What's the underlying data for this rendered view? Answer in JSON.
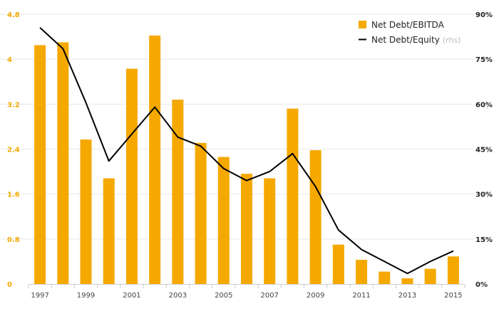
{
  "chart_data": {
    "type": "bar+line",
    "x": [
      "1997",
      "1998",
      "1999",
      "2000",
      "2001",
      "2002",
      "2003",
      "2004",
      "2005",
      "2006",
      "2007",
      "2008",
      "2009",
      "2010",
      "2011",
      "2012",
      "2013",
      "2014",
      "2015"
    ],
    "x_tick_labels": [
      "1997",
      "1999",
      "2001",
      "2003",
      "2005",
      "2007",
      "2009",
      "2011",
      "2013",
      "2015"
    ],
    "series": [
      {
        "name": "Net Debt/EBITDA",
        "type": "bar",
        "axis": "left",
        "color": "#f5a800",
        "values": [
          4.25,
          4.3,
          2.57,
          1.88,
          3.83,
          4.42,
          3.28,
          2.51,
          2.26,
          1.96,
          1.88,
          3.12,
          2.38,
          0.7,
          0.43,
          0.22,
          0.1,
          0.27,
          0.49
        ]
      },
      {
        "name": "Net Debt/Equity",
        "type": "line",
        "axis": "right",
        "color": "#000000",
        "values": [
          85.5,
          78.5,
          60.5,
          41,
          50,
          59,
          49,
          46,
          38.5,
          34.5,
          37.5,
          43.5,
          32.5,
          18,
          11.5,
          7.5,
          3.5,
          7.5,
          11
        ]
      }
    ],
    "y_left": {
      "ylim": [
        0,
        4.8
      ],
      "ticks": [
        "0",
        "0.8",
        "1.6",
        "2.4",
        "3.2",
        "4",
        "4.8"
      ],
      "tick_values": [
        0,
        0.8,
        1.6,
        2.4,
        3.2,
        4,
        4.8
      ]
    },
    "y_right": {
      "ylim": [
        0,
        90
      ],
      "ticks": [
        "0%",
        "15%",
        "30%",
        "45%",
        "60%",
        "75%",
        "90%"
      ],
      "tick_values": [
        0,
        15,
        30,
        45,
        60,
        75,
        90
      ]
    },
    "legend": {
      "position": "top-right",
      "entries": [
        {
          "label": "Net Debt/EBITDA",
          "suffix": ""
        },
        {
          "label": "Net Debt/Equity",
          "suffix": "(rhs)"
        }
      ]
    },
    "grid": true
  }
}
